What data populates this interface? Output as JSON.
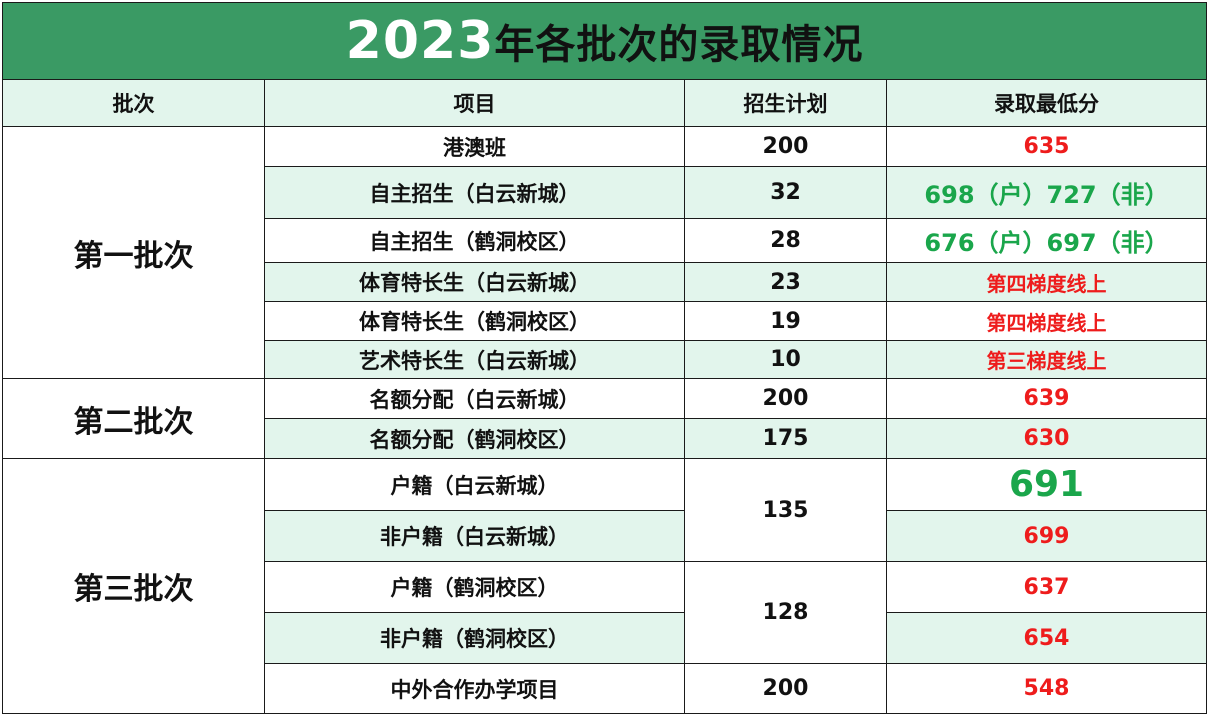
{
  "title": {
    "year": "2023",
    "rest": "年各批次的录取情况"
  },
  "headers": {
    "batch": "批次",
    "project": "项目",
    "plan": "招生计划",
    "score": "录取最低分"
  },
  "batches": {
    "first": "第一批次",
    "second": "第二批次",
    "third": "第三批次"
  },
  "rows": [
    {
      "project": "港澳班",
      "plan": "200",
      "score": "635",
      "score_color": "red"
    },
    {
      "project": "自主招生（白云新城）",
      "plan": "32",
      "score": "698（户）727（非）",
      "score_color": "green"
    },
    {
      "project": "自主招生（鹤洞校区）",
      "plan": "28",
      "score": "676（户）697（非）",
      "score_color": "green"
    },
    {
      "project": "体育特长生（白云新城）",
      "plan": "23",
      "score": "第四梯度线上",
      "score_color": "red"
    },
    {
      "project": "体育特长生（鹤洞校区）",
      "plan": "19",
      "score": "第四梯度线上",
      "score_color": "red"
    },
    {
      "project": "艺术特长生（白云新城）",
      "plan": "10",
      "score": "第三梯度线上",
      "score_color": "red"
    },
    {
      "project": "名额分配（白云新城）",
      "plan": "200",
      "score": "639",
      "score_color": "red"
    },
    {
      "project": "名额分配（鹤洞校区）",
      "plan": "175",
      "score": "630",
      "score_color": "red"
    },
    {
      "project": "户籍（白云新城）",
      "plan": "135",
      "score": "691",
      "score_color": "green"
    },
    {
      "project": "非户籍（白云新城）",
      "plan": "",
      "score": "699",
      "score_color": "red"
    },
    {
      "project": "户籍（鹤洞校区）",
      "plan": "128",
      "score": "637",
      "score_color": "red"
    },
    {
      "project": "非户籍（鹤洞校区）",
      "plan": "",
      "score": "654",
      "score_color": "red"
    },
    {
      "project": "中外合作办学项目",
      "plan": "200",
      "score": "548",
      "score_color": "red"
    }
  ],
  "colors": {
    "header_green": "#3a9a64",
    "light_row": "#e2f5ec",
    "red_text": "#ee1c1c",
    "green_text": "#1aa64b"
  }
}
